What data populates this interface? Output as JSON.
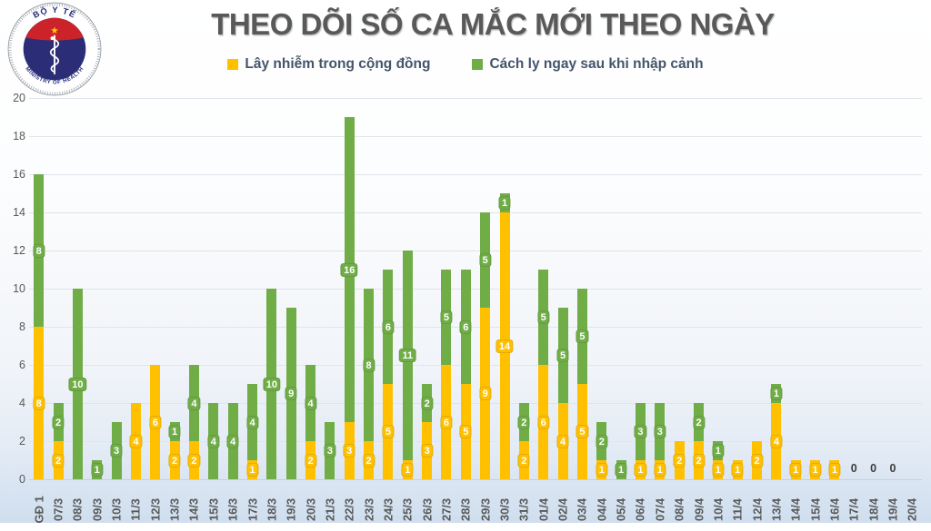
{
  "logo": {
    "top_text": "BỘ Y TẾ",
    "bottom_text": "MINISTRY OF HEALTH",
    "colors": {
      "navy": "#2b2d77",
      "red": "#cc2229",
      "star": "#ffd500",
      "ring_text": "#1f2a7a"
    }
  },
  "title": "THEO DÕI SỐ CA MẮC MỚI THEO NGÀY",
  "legend": [
    {
      "label": "Lây nhiễm trong cộng đồng",
      "color": "#FFC000"
    },
    {
      "label": "Cách ly ngay sau khi nhập cảnh",
      "color": "#70AD47"
    }
  ],
  "colors": {
    "community": "#FFC000",
    "quarantine": "#70AD47",
    "title_text": "#595959",
    "axis_text": "#595959",
    "gridline": "#dfe5ec"
  },
  "chart_data": {
    "type": "bar",
    "stacked": true,
    "title": "THEO DÕI SỐ CA MẮC MỚI THEO NGÀY",
    "xlabel": "",
    "ylabel": "",
    "ylim": [
      0,
      20
    ],
    "ytick_step": 2,
    "grid": true,
    "legend_position": "top",
    "data_labels": true,
    "categories": [
      "GĐ 1",
      "07/3",
      "08/3",
      "09/3",
      "10/3",
      "11/3",
      "12/3",
      "13/3",
      "14/3",
      "15/3",
      "16/3",
      "17/3",
      "18/3",
      "19/3",
      "20/3",
      "21/3",
      "22/3",
      "23/3",
      "24/3",
      "25/3",
      "26/3",
      "27/3",
      "28/3",
      "29/3",
      "30/3",
      "31/3",
      "01/4",
      "02/4",
      "03/4",
      "04/4",
      "05/4",
      "06/4",
      "07/4",
      "08/4",
      "09/4",
      "10/4",
      "11/4",
      "12/4",
      "13/4",
      "14/4",
      "15/4",
      "16/4",
      "17/4",
      "18/4",
      "19/4",
      "20/4"
    ],
    "series": [
      {
        "name": "Lây nhiễm trong cộng đồng",
        "color": "#FFC000",
        "values": [
          8,
          2,
          0,
          0,
          0,
          4,
          6,
          2,
          2,
          0,
          0,
          1,
          0,
          0,
          2,
          0,
          3,
          2,
          5,
          1,
          3,
          6,
          5,
          9,
          14,
          2,
          6,
          4,
          5,
          1,
          0,
          1,
          1,
          2,
          2,
          1,
          1,
          2,
          4,
          1,
          1,
          1,
          0,
          0,
          0,
          0
        ]
      },
      {
        "name": "Cách ly ngay sau khi nhập cảnh",
        "color": "#70AD47",
        "values": [
          8,
          2,
          10,
          1,
          3,
          0,
          0,
          1,
          4,
          4,
          4,
          4,
          10,
          9,
          4,
          3,
          16,
          8,
          6,
          11,
          2,
          5,
          6,
          5,
          1,
          2,
          5,
          5,
          5,
          2,
          1,
          3,
          3,
          0,
          2,
          1,
          0,
          0,
          1,
          0,
          0,
          0,
          0,
          0,
          0,
          0
        ]
      }
    ],
    "zero_labels": [
      "17/4",
      "18/4",
      "19/4"
    ]
  }
}
